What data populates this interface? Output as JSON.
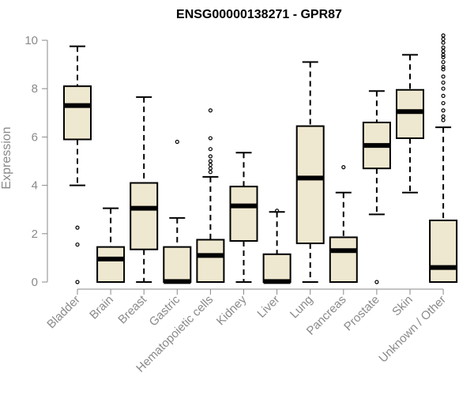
{
  "chart_data": {
    "type": "boxplot",
    "title": "ENSG00000138271 - GPR87",
    "xlabel": "",
    "ylabel": "Expression",
    "ylim": [
      0,
      10
    ],
    "yticks": [
      0,
      2,
      4,
      6,
      8,
      10
    ],
    "box_fill": "#efe8d0",
    "box_stroke": "#000000",
    "axis_color": "#8a8a8a",
    "categories": [
      "Bladder",
      "Brain",
      "Breast",
      "Gastric",
      "Hematopoietic cells",
      "Kidney",
      "Liver",
      "Lung",
      "Pancreas",
      "Prostate",
      "Skin",
      "Unknown / Other"
    ],
    "boxes": [
      {
        "name": "Bladder",
        "whisker_low": 4.0,
        "q1": 5.9,
        "median": 7.3,
        "q3": 8.1,
        "whisker_high": 9.75,
        "outliers": [
          0.0,
          1.55,
          2.25
        ]
      },
      {
        "name": "Brain",
        "whisker_low": 0.0,
        "q1": 0.0,
        "median": 0.95,
        "q3": 1.45,
        "whisker_high": 3.05,
        "outliers": []
      },
      {
        "name": "Breast",
        "whisker_low": 0.0,
        "q1": 1.35,
        "median": 3.05,
        "q3": 4.1,
        "whisker_high": 7.65,
        "outliers": []
      },
      {
        "name": "Gastric",
        "whisker_low": 0.0,
        "q1": 0.0,
        "median": 0.02,
        "q3": 1.45,
        "whisker_high": 2.65,
        "outliers": [
          5.8
        ]
      },
      {
        "name": "Hematopoietic cells",
        "whisker_low": 0.0,
        "q1": 0.0,
        "median": 1.1,
        "q3": 1.75,
        "whisker_high": 4.35,
        "outliers": [
          4.55,
          4.7,
          4.85,
          5.0,
          5.2,
          5.5,
          5.95,
          7.1
        ]
      },
      {
        "name": "Kidney",
        "whisker_low": 0.0,
        "q1": 1.7,
        "median": 3.15,
        "q3": 3.95,
        "whisker_high": 5.35,
        "outliers": []
      },
      {
        "name": "Liver",
        "whisker_low": 0.0,
        "q1": 0.0,
        "median": 0.02,
        "q3": 1.15,
        "whisker_high": 2.9,
        "outliers": [
          2.95
        ]
      },
      {
        "name": "Lung",
        "whisker_low": 0.0,
        "q1": 1.6,
        "median": 4.3,
        "q3": 6.45,
        "whisker_high": 9.1,
        "outliers": []
      },
      {
        "name": "Pancreas",
        "whisker_low": 0.0,
        "q1": 0.0,
        "median": 1.3,
        "q3": 1.85,
        "whisker_high": 3.7,
        "outliers": [
          4.75
        ]
      },
      {
        "name": "Prostate",
        "whisker_low": 2.8,
        "q1": 4.7,
        "median": 5.65,
        "q3": 6.6,
        "whisker_high": 7.9,
        "outliers": [
          0.0
        ]
      },
      {
        "name": "Skin",
        "whisker_low": 3.7,
        "q1": 5.95,
        "median": 7.05,
        "q3": 7.95,
        "whisker_high": 9.4,
        "outliers": []
      },
      {
        "name": "Unknown / Other",
        "whisker_low": 0.0,
        "q1": 0.0,
        "median": 0.6,
        "q3": 2.55,
        "whisker_high": 6.4,
        "outliers": [
          6.7,
          6.85,
          7.1,
          7.4,
          7.7,
          8.0,
          8.25,
          8.5,
          8.8,
          8.9,
          9.1,
          9.3,
          9.4,
          9.55,
          9.7,
          9.9,
          10.05,
          10.2
        ]
      }
    ]
  }
}
